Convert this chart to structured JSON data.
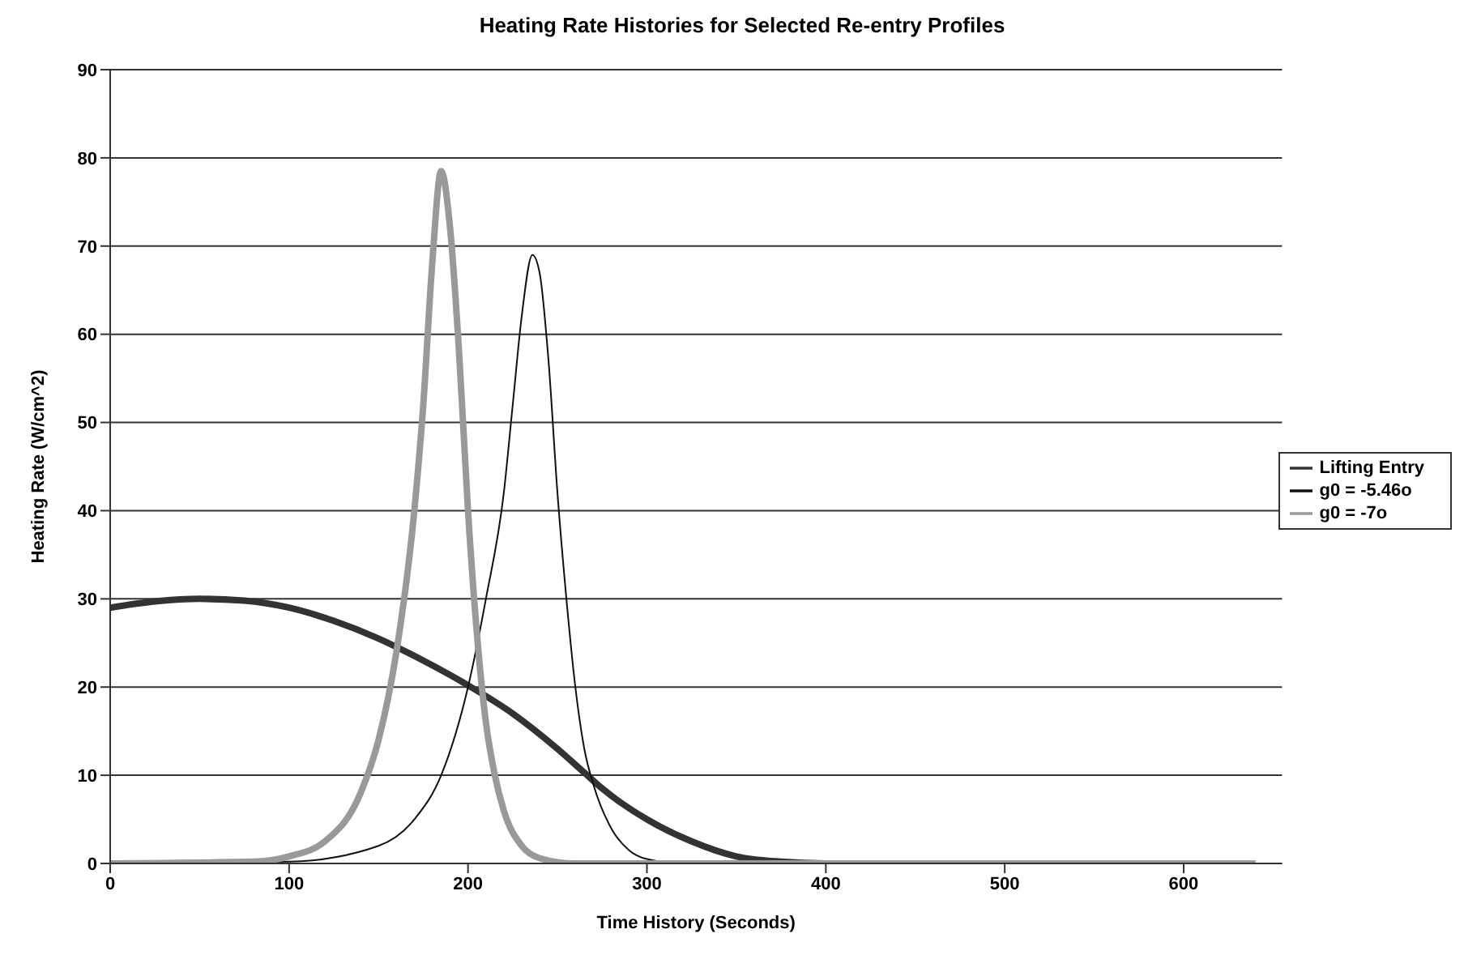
{
  "chart_data": {
    "type": "line",
    "title": "Heating Rate Histories for Selected Re-entry Profiles",
    "xlabel": "Time History (Seconds)",
    "ylabel": "Heating Rate (W/cm^2)",
    "xlim": [
      0,
      655
    ],
    "xticks": [
      0,
      100,
      200,
      300,
      400,
      500,
      600
    ],
    "ylim": [
      0,
      90
    ],
    "yticks": [
      0,
      10,
      20,
      30,
      40,
      50,
      60,
      70,
      80,
      90
    ],
    "grid": "y",
    "legend": "right",
    "marker": "none",
    "line_style": "solid",
    "series": [
      {
        "name": "Lifting Entry",
        "color": "#333333",
        "x": [
          0,
          25,
          50,
          75,
          100,
          125,
          150,
          175,
          200,
          225,
          250,
          265,
          275,
          300,
          325,
          350,
          375,
          400,
          500,
          640
        ],
        "values": [
          29,
          29.7,
          30,
          29.8,
          29,
          27.5,
          25.5,
          23,
          20.2,
          17,
          13,
          10.3,
          8.5,
          5,
          2.5,
          0.8,
          0.2,
          0,
          0,
          0
        ]
      },
      {
        "name": "g0 = -5.46o",
        "color": "#111111",
        "x": [
          0,
          100,
          150,
          170,
          185,
          200,
          210,
          220,
          225,
          230,
          236,
          240,
          245,
          250,
          255,
          260,
          265,
          270,
          280,
          290,
          300,
          320,
          640
        ],
        "values": [
          0,
          0.2,
          2,
          5,
          10,
          20,
          30,
          42,
          52,
          62,
          69,
          67,
          57,
          42,
          30,
          20,
          13,
          9,
          4,
          1.5,
          0.5,
          0,
          0
        ]
      },
      {
        "name": "g0 = -7o",
        "color": "#999999",
        "x": [
          0,
          80,
          100,
          120,
          140,
          150,
          160,
          170,
          175,
          180,
          185,
          190,
          195,
          200,
          205,
          210,
          215,
          220,
          230,
          240,
          260,
          640
        ],
        "values": [
          0,
          0.2,
          0.8,
          2.5,
          8,
          14,
          24,
          40,
          52,
          68,
          78.5,
          72,
          58,
          40,
          26,
          16,
          10,
          6,
          2,
          0.6,
          0,
          0
        ]
      }
    ]
  }
}
